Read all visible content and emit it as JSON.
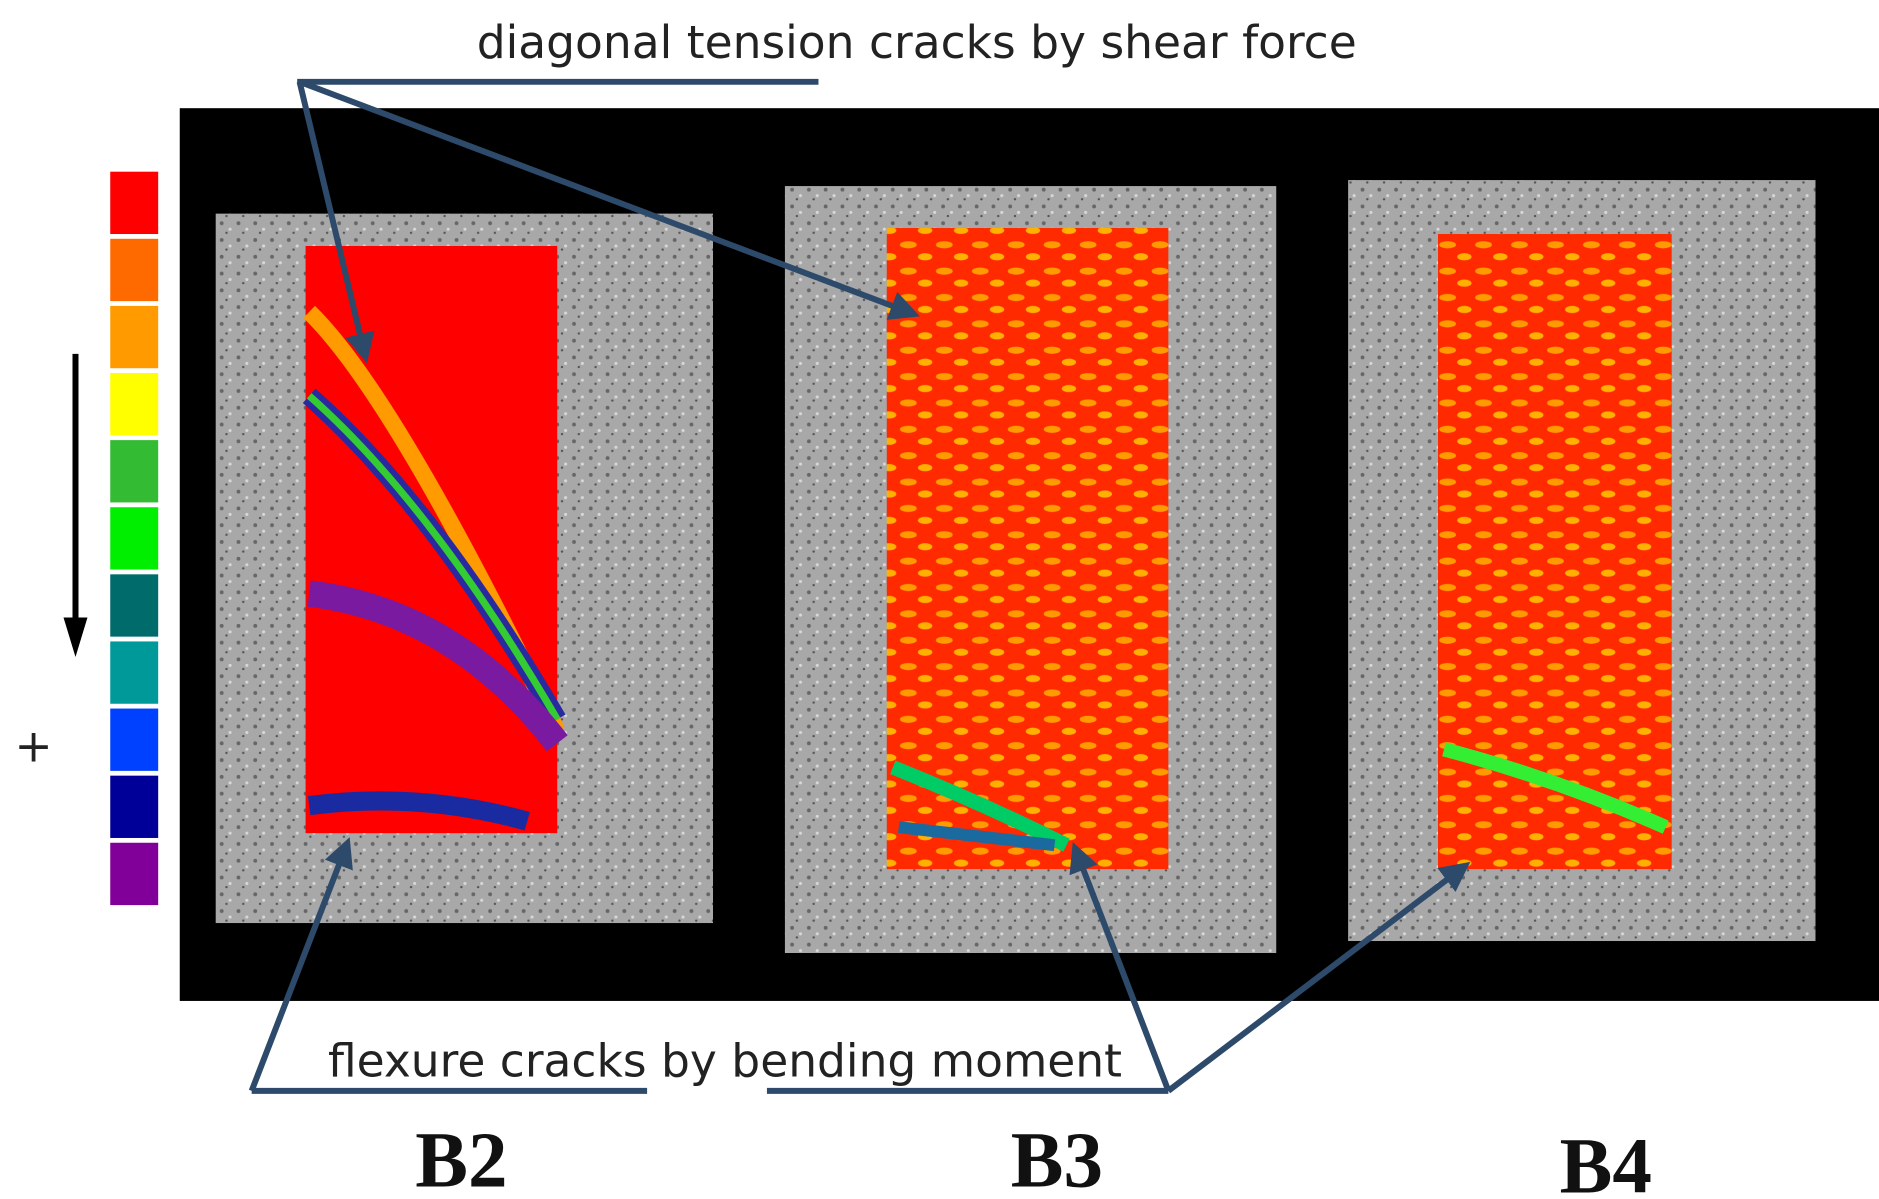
{
  "annotations": {
    "top": "diagonal tension cracks by shear force",
    "bottom": "flexure cracks by bending moment"
  },
  "scale": {
    "sign": "+"
  },
  "specimens": [
    {
      "label": "B2"
    },
    {
      "label": "B3"
    },
    {
      "label": "B4"
    }
  ]
}
